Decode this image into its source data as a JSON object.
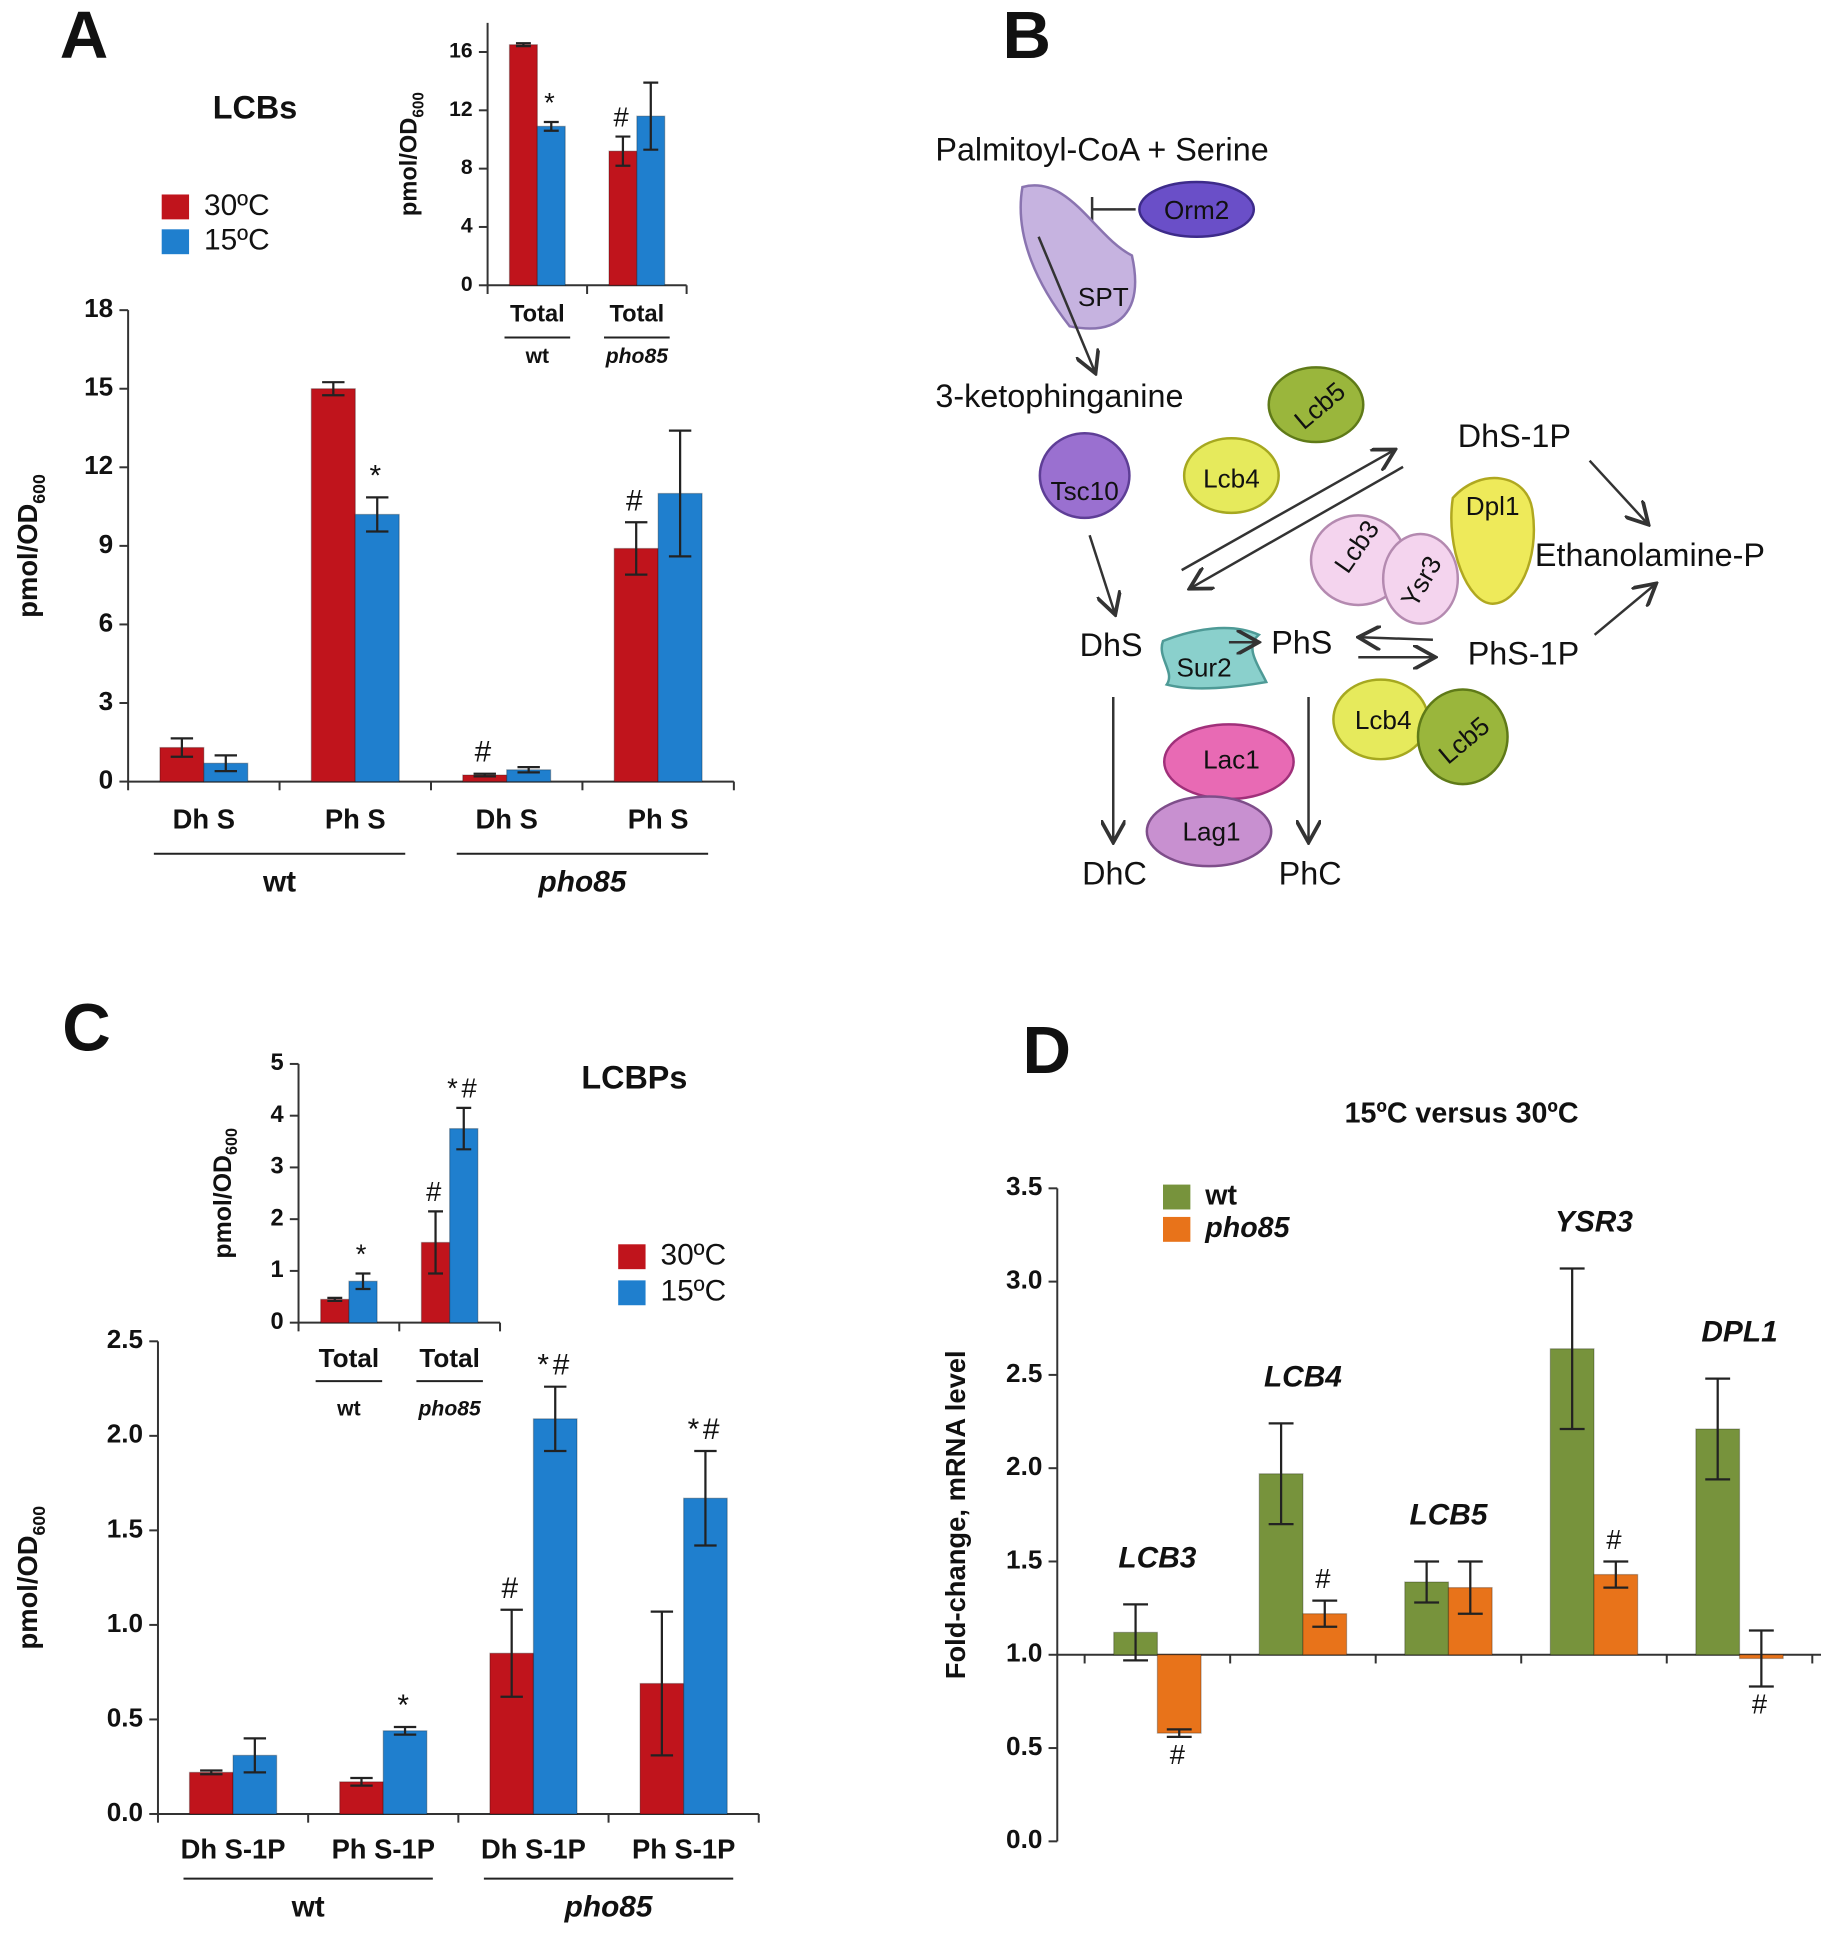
{
  "panels": [
    "A",
    "B",
    "C",
    "D"
  ],
  "chart_data": [
    {
      "type": "bar",
      "title": "LCBs",
      "ylabel": "pmol/OD",
      "ylabel_sub": "600",
      "categories": [
        "Dh S",
        "Ph S",
        "Dh S",
        "Ph S"
      ],
      "groups": [
        "wt",
        "pho85"
      ],
      "series": [
        {
          "name": "30ºC",
          "color": "#c0141c",
          "values": [
            1.3,
            15.0,
            0.25,
            8.9
          ],
          "errors": [
            0.35,
            0.25,
            0.05,
            1.0
          ],
          "annotations": [
            null,
            null,
            "#",
            "#"
          ]
        },
        {
          "name": "15ºC",
          "color": "#1f7fce",
          "values": [
            0.7,
            10.2,
            0.45,
            11.0
          ],
          "errors": [
            0.3,
            0.65,
            0.1,
            2.4
          ],
          "annotations": [
            null,
            "*",
            null,
            null
          ]
        }
      ],
      "ylim": [
        0,
        18
      ],
      "yticks": [
        0,
        3,
        6,
        9,
        12,
        15,
        18
      ],
      "legend": "upper left"
    },
    {
      "type": "bar",
      "ylabel": "pmol/OD",
      "ylabel_sub": "600",
      "categories": [
        "Total",
        "Total"
      ],
      "groups": [
        "wt",
        "pho85"
      ],
      "series": [
        {
          "color": "#c0141c",
          "values": [
            16.5,
            9.2
          ],
          "errors": [
            0.1,
            1.0
          ],
          "annotations": [
            null,
            "#"
          ]
        },
        {
          "color": "#1f7fce",
          "values": [
            10.9,
            11.6
          ],
          "errors": [
            0.3,
            2.3
          ],
          "annotations": [
            "*",
            null
          ]
        }
      ],
      "ylim": [
        0,
        18
      ],
      "yticks": [
        0,
        4,
        8,
        12,
        16
      ]
    },
    {
      "type": "bar",
      "title": "LCBPs",
      "ylabel": "pmol/OD",
      "ylabel_sub": "600",
      "categories": [
        "Dh S-1P",
        "Ph S-1P",
        "Dh S-1P",
        "Ph S-1P"
      ],
      "groups": [
        "wt",
        "pho85"
      ],
      "series": [
        {
          "name": "30ºC",
          "color": "#c0141c",
          "values": [
            0.22,
            0.17,
            0.85,
            0.69
          ],
          "errors": [
            0.01,
            0.02,
            0.23,
            0.38
          ],
          "annotations": [
            null,
            null,
            "#",
            null
          ]
        },
        {
          "name": "15ºC",
          "color": "#1f7fce",
          "values": [
            0.31,
            0.44,
            2.09,
            1.67
          ],
          "errors": [
            0.09,
            0.02,
            0.17,
            0.25
          ],
          "annotations": [
            null,
            "*",
            "*#",
            "*#"
          ]
        }
      ],
      "ylim": [
        0,
        2.5
      ],
      "yticks": [
        {
          "value": 0,
          "label": "0.0"
        },
        0.5,
        {
          "value": 1,
          "label": "1.0"
        },
        1.5,
        {
          "value": 2,
          "label": "2.0"
        },
        2.5
      ],
      "legend": "upper right"
    },
    {
      "type": "bar",
      "ylabel": "pmol/OD",
      "ylabel_sub": "600",
      "categories": [
        "Total",
        "Total"
      ],
      "groups": [
        "wt",
        "pho85"
      ],
      "series": [
        {
          "color": "#c0141c",
          "values": [
            0.45,
            1.55
          ],
          "errors": [
            0.03,
            0.6
          ],
          "annotations": [
            null,
            "#"
          ]
        },
        {
          "color": "#1f7fce",
          "values": [
            0.8,
            3.75
          ],
          "errors": [
            0.15,
            0.4
          ],
          "annotations": [
            "*",
            "*#"
          ]
        }
      ],
      "ylim": [
        0,
        5
      ],
      "yticks": [
        0,
        1,
        2,
        3,
        4,
        5
      ]
    },
    {
      "type": "bar",
      "title": "15ºC versus 30ºC",
      "ylabel": "Fold-change, mRNA level",
      "categories": [
        "LCB3",
        "LCB4",
        "LCB5",
        "YSR3",
        "DPL1"
      ],
      "baseline": 1,
      "series": [
        {
          "name": "wt",
          "color": "#77933c",
          "values": [
            1.12,
            1.97,
            1.39,
            2.64,
            2.21
          ],
          "errors": [
            0.15,
            0.27,
            0.11,
            0.43,
            0.27
          ],
          "annotations": [
            null,
            null,
            null,
            null,
            null
          ]
        },
        {
          "name": "pho85",
          "color": "#e8731a",
          "values": [
            0.58,
            1.22,
            1.36,
            1.43,
            0.98
          ],
          "errors": [
            0.02,
            0.07,
            0.14,
            0.07,
            0.15
          ],
          "annotations": [
            "#",
            "#",
            null,
            "#",
            "#"
          ]
        }
      ],
      "ylim": [
        0,
        3.5
      ],
      "yticks": [
        {
          "value": 0,
          "label": "0.0"
        },
        0.5,
        {
          "value": 1,
          "label": "1.0"
        },
        1.5,
        {
          "value": 2,
          "label": "2.0"
        },
        2.5,
        {
          "value": 3,
          "label": "3.0"
        },
        3.5
      ],
      "legend": "upper left"
    }
  ],
  "diagram": {
    "substrates": [
      "Palmitoyl-CoA + Serine",
      "3-ketophinganine",
      "DhS-1P",
      "Ethanolamine-P",
      "DhS",
      "PhS",
      "PhS-1P",
      "DhC",
      "PhC"
    ],
    "enzymes": [
      "Orm2",
      "SPT",
      "Tsc10",
      "Lcb4",
      "Lcb5",
      "Dpl1",
      "Lcb3",
      "Ysr3",
      "Sur2",
      "Lcb4",
      "Lcb5",
      "Lac1",
      "Lag1"
    ]
  }
}
